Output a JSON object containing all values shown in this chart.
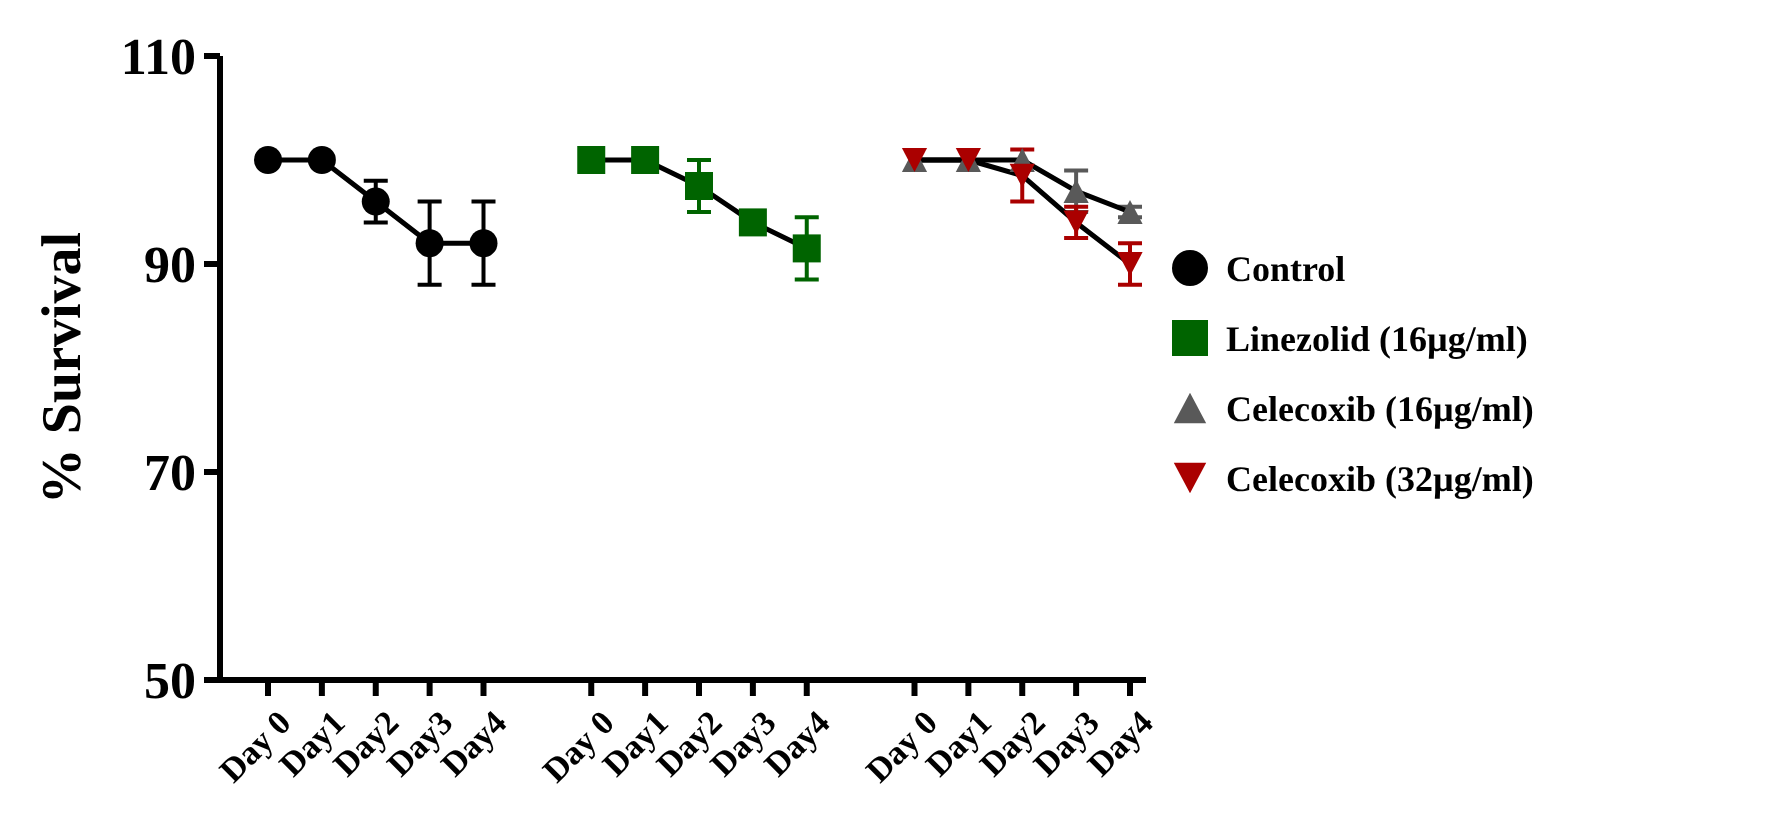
{
  "chart_data": {
    "type": "line",
    "ylabel": "% Survival",
    "categories": [
      "Day 0",
      "Day1",
      "Day2",
      "Day3",
      "Day4",
      null,
      "Day 0",
      "Day1",
      "Day2",
      "Day3",
      "Day4",
      null,
      "Day 0",
      "Day1",
      "Day2",
      "Day3",
      "Day4"
    ],
    "ylim": [
      50,
      110
    ],
    "yticks": [
      50,
      70,
      90,
      110
    ],
    "grid": false,
    "legend": "right",
    "series": [
      {
        "name": "Control",
        "color": "#000000",
        "marker": "circle",
        "values": [
          100,
          100,
          96,
          92,
          92,
          null,
          null,
          null,
          null,
          null,
          null,
          null,
          null,
          null,
          null,
          null,
          null
        ],
        "errors": [
          0,
          0,
          2,
          4,
          4,
          null,
          null,
          null,
          null,
          null,
          null,
          null,
          null,
          null,
          null,
          null,
          null
        ]
      },
      {
        "name": "Linezolid (16µg/ml)",
        "color": "#006400",
        "marker": "square",
        "values": [
          null,
          null,
          null,
          null,
          null,
          null,
          100,
          100,
          97.5,
          94,
          91.5,
          null,
          null,
          null,
          null,
          null,
          null
        ],
        "errors": [
          null,
          null,
          null,
          null,
          null,
          null,
          0,
          0,
          2.5,
          0.5,
          3,
          null,
          null,
          null,
          null,
          null,
          null
        ]
      },
      {
        "name": "Celecoxib (16µg/ml)",
        "color": "#595959",
        "marker": "triangle",
        "values": [
          null,
          null,
          null,
          null,
          null,
          null,
          null,
          null,
          null,
          null,
          null,
          null,
          100,
          100,
          100,
          97,
          95
        ],
        "errors": [
          null,
          null,
          null,
          null,
          null,
          null,
          null,
          null,
          null,
          null,
          null,
          null,
          0,
          0,
          0,
          2,
          0.5
        ]
      },
      {
        "name": "Celecoxib (32µg/ml)",
        "color": "#aa0000",
        "marker": "triangle-down",
        "values": [
          null,
          null,
          null,
          null,
          null,
          null,
          null,
          null,
          null,
          null,
          null,
          null,
          100,
          100,
          98.5,
          94,
          90
        ],
        "errors": [
          null,
          null,
          null,
          null,
          null,
          null,
          null,
          null,
          null,
          null,
          null,
          null,
          0,
          0,
          2.5,
          1.5,
          2
        ]
      }
    ]
  }
}
